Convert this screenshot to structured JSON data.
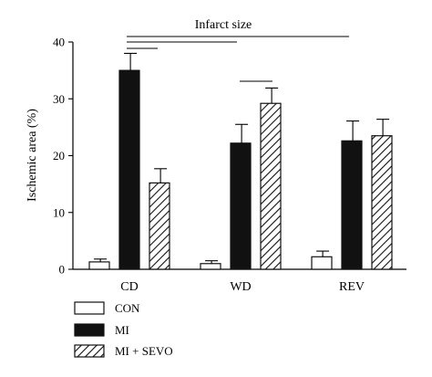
{
  "chart_data": {
    "type": "bar",
    "title": "",
    "xlabel": "",
    "ylabel": "Ischemic area (%)",
    "ylim": [
      0,
      40
    ],
    "yticks": [
      0,
      10,
      20,
      30,
      40
    ],
    "categories": [
      "CD",
      "WD",
      "REV"
    ],
    "series": [
      {
        "name": "CON",
        "values": [
          1.3,
          1.0,
          2.2
        ],
        "errors": [
          0.5,
          0.5,
          1.0
        ],
        "color": "#ffffff",
        "pattern": "none"
      },
      {
        "name": "MI",
        "values": [
          35.0,
          22.2,
          22.6
        ],
        "errors": [
          3.0,
          3.3,
          3.5
        ],
        "color": "#111111",
        "pattern": "solid"
      },
      {
        "name": "MI + SEVO",
        "values": [
          15.2,
          29.2,
          23.5
        ],
        "errors": [
          2.5,
          2.7,
          2.9
        ],
        "color": "#ffffff",
        "pattern": "hatch"
      }
    ],
    "annotations": [
      {
        "text": "Infarct size"
      }
    ],
    "legend_position": "bottom-left",
    "grid": false
  }
}
